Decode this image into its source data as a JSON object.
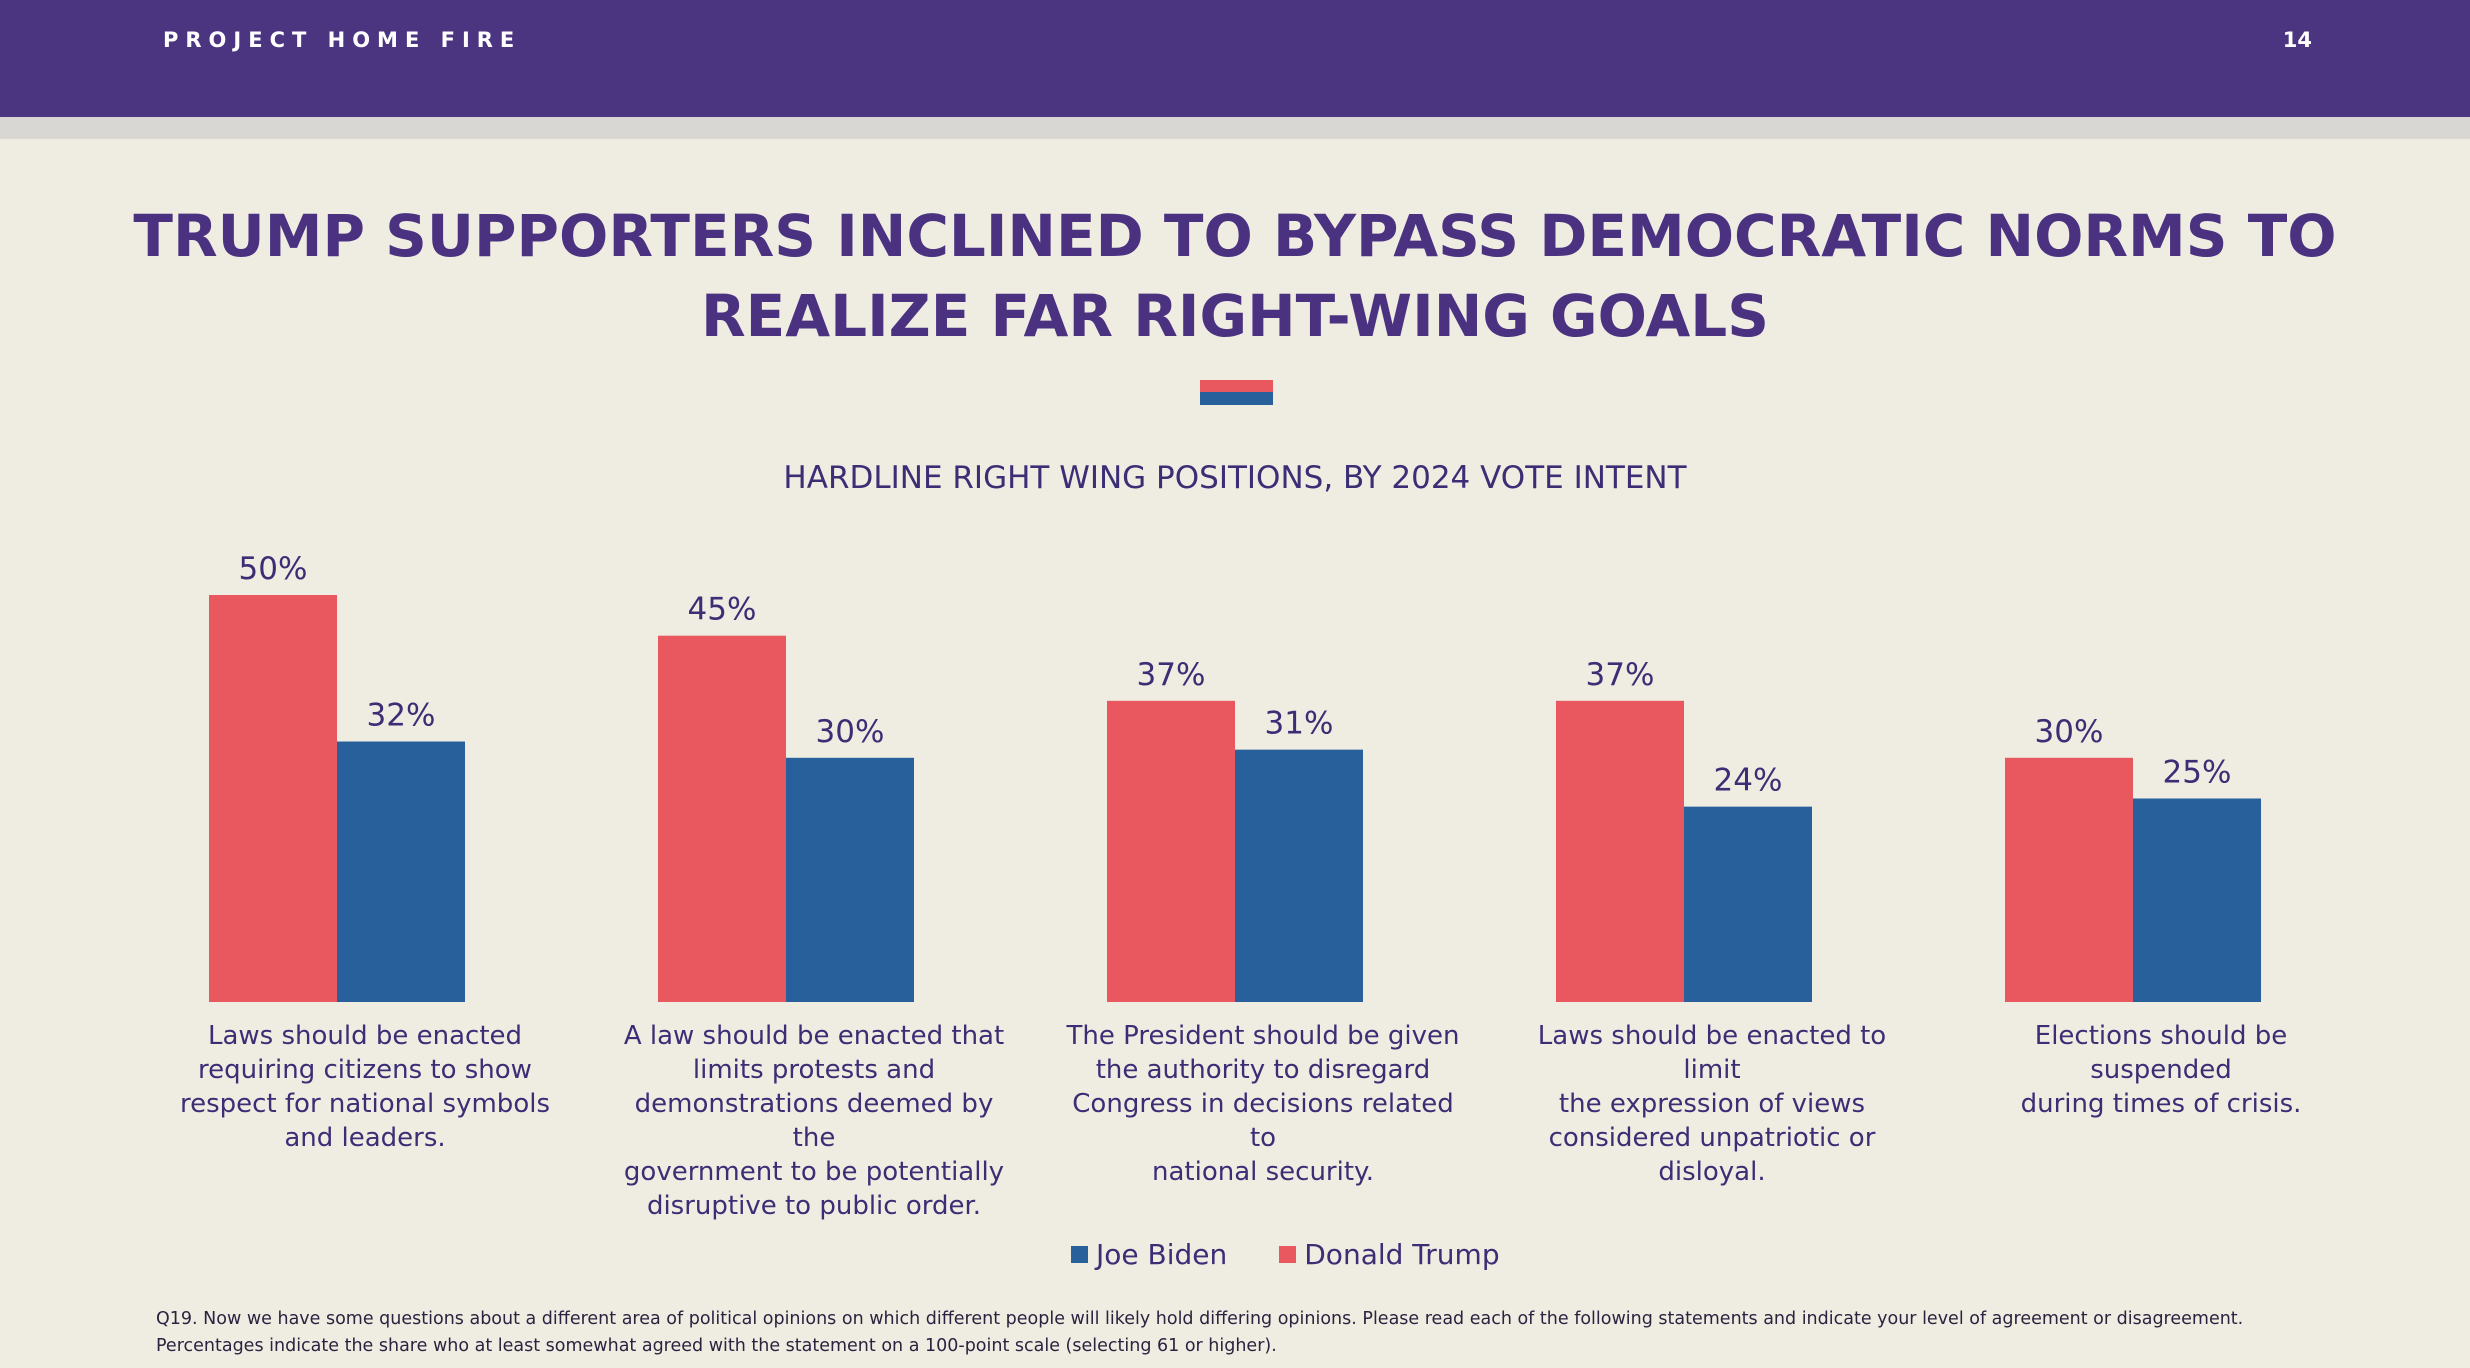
{
  "header": {
    "brand": "PROJECT HOME FIRE",
    "page_number": "14"
  },
  "title_line1": "TRUMP SUPPORTERS INCLINED TO BYPASS DEMOCRATIC NORMS TO",
  "title_line2": "REALIZE FAR RIGHT-WING GOALS",
  "colors": {
    "header_bg": "#4b3480",
    "trump": "#e9585f",
    "biden": "#27609a",
    "text": "#3b2e75"
  },
  "chart_data": {
    "type": "bar",
    "title": "HARDLINE RIGHT WING POSITIONS, BY 2024 VOTE INTENT",
    "categories": [
      [
        "Laws should be enacted",
        "requiring citizens to show",
        "respect for national symbols",
        "and leaders."
      ],
      [
        "A law should be enacted that",
        "limits protests and",
        "demonstrations deemed by the",
        "government to be potentially",
        "disruptive to public order."
      ],
      [
        "The President should be given",
        "the authority to disregard",
        "Congress in decisions related to",
        "national security."
      ],
      [
        "Laws should be enacted to limit",
        "the expression of views",
        "considered unpatriotic or",
        "disloyal."
      ],
      [
        "Elections should be suspended",
        "during times of crisis."
      ]
    ],
    "series": [
      {
        "name": "Donald Trump",
        "color": "#e9585f",
        "values": [
          50,
          45,
          37,
          37,
          30
        ],
        "labels": [
          "50%",
          "45%",
          "37%",
          "37%",
          "30%"
        ]
      },
      {
        "name": "Joe Biden",
        "color": "#27609a",
        "values": [
          32,
          30,
          31,
          24,
          25
        ],
        "labels": [
          "32%",
          "30%",
          "31%",
          "24%",
          "25%"
        ]
      }
    ],
    "unit": "%",
    "ylim": [
      0,
      50
    ],
    "grid": false,
    "legend_placement": "bottom-center"
  },
  "legend": {
    "biden": "Joe Biden",
    "trump": "Donald Trump"
  },
  "footnote": {
    "line1": "Q19. Now we have some questions about a different area of political opinions on which different people will likely hold differing opinions. Please read each of the following statements and indicate your level of agreement or disagreement.",
    "line2": "Percentages indicate the share who at least somewhat agreed with the statement on a 100-point scale (selecting 61 or higher)."
  }
}
